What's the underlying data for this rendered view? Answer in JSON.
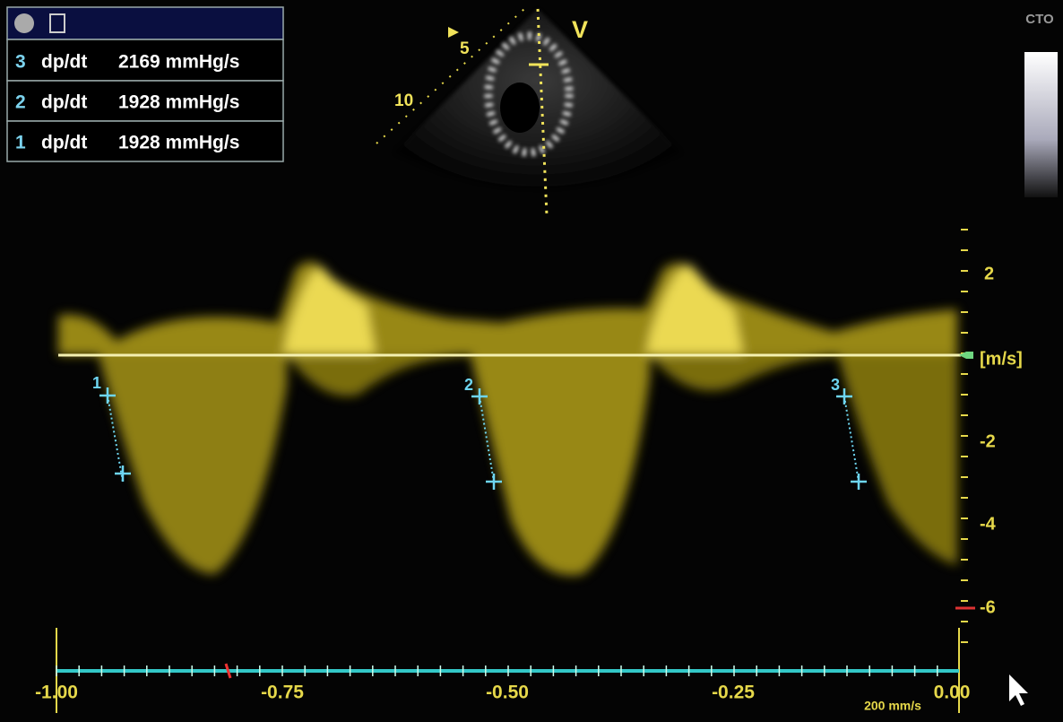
{
  "measurements": [
    {
      "index": "3",
      "label": "dp/dt",
      "value": "2169 mmHg/s"
    },
    {
      "index": "2",
      "label": "dp/dt",
      "value": "1928 mmHg/s"
    },
    {
      "index": "1",
      "label": "dp/dt",
      "value": "1928 mmHg/s"
    }
  ],
  "sector": {
    "depth_marks": [
      "5",
      "10"
    ],
    "mode": "V"
  },
  "scale_label": "CTO",
  "velocity_axis": {
    "unit": "[m/s]",
    "ticks": [
      "2",
      "-2",
      "-4",
      "-6"
    ]
  },
  "time_axis": {
    "ticks": [
      "-1.00",
      "-0.75",
      "-0.50",
      "-0.25",
      "0.00"
    ],
    "sweep_speed": "200 mm/s"
  },
  "markers": [
    "1",
    "2",
    "3"
  ]
}
